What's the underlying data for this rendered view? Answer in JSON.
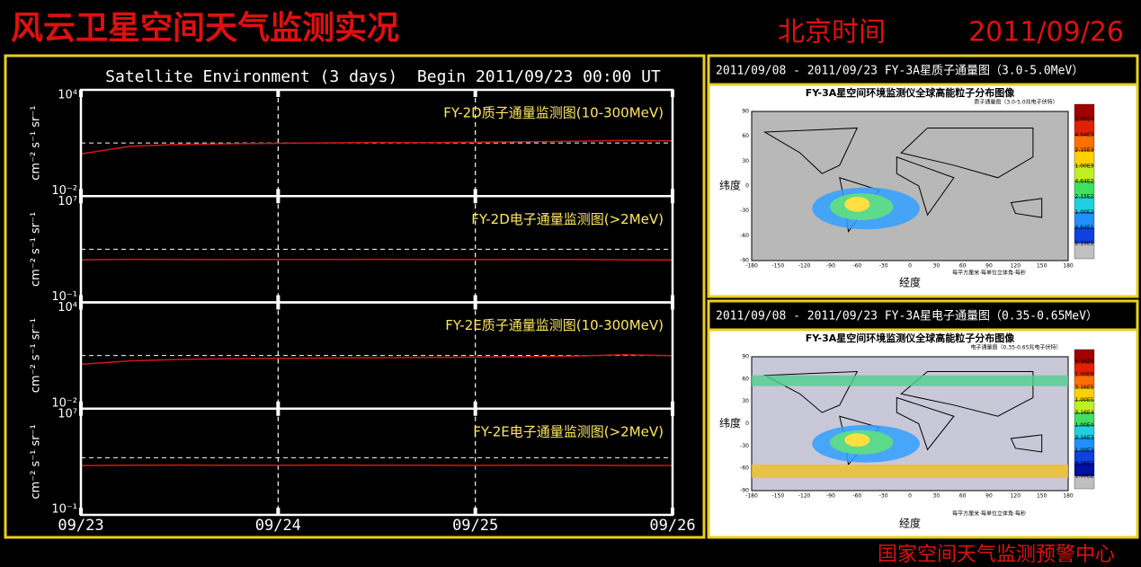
{
  "header": {
    "title": "风云卫星空间天气监测实况",
    "time_label": "北京时间",
    "date": "2011/09/26"
  },
  "left_panel": {
    "title": "Satellite Environment (3 days)  Begin 2011/09/23 00:00 UT"
  },
  "chart_data": [
    {
      "type": "line",
      "title": "FY-2D质子通量监测图(10-300MeV)",
      "y_label": "cm⁻² s⁻¹ sr⁻¹",
      "color": "#d01818",
      "log_y": true,
      "threshold": 10,
      "xlim": [
        0,
        3
      ],
      "xticks": [
        0,
        1,
        2,
        3
      ],
      "ylim": [
        0.01,
        10000
      ],
      "yticks": [
        {
          "value": 0.01,
          "label": "10⁻²"
        },
        {
          "value": 10000,
          "label": "10⁴"
        }
      ],
      "x": [
        0,
        0.25,
        0.5,
        0.75,
        1,
        1.25,
        1.5,
        1.75,
        2,
        2.25,
        2.5,
        2.75,
        3
      ],
      "values": [
        2.4,
        6.5,
        8.2,
        9.0,
        9.6,
        10.2,
        10.8,
        10.5,
        11.2,
        11.8,
        12.5,
        14.0,
        13.2
      ]
    },
    {
      "type": "line",
      "title": "FY-2D电子通量监测图(>2MeV)",
      "y_label": "cm⁻² s⁻¹ sr⁻¹",
      "color": "#d01818",
      "log_y": true,
      "threshold": 1000,
      "xlim": [
        0,
        3
      ],
      "xticks": [
        0,
        1,
        2,
        3
      ],
      "ylim": [
        0.1,
        10000000
      ],
      "yticks": [
        {
          "value": 0.1,
          "label": "10⁻¹"
        },
        {
          "value": 10000000,
          "label": "10⁷"
        }
      ],
      "x": [
        0,
        0.25,
        0.5,
        0.75,
        1,
        1.25,
        1.5,
        1.75,
        2,
        2.25,
        2.5,
        2.75,
        3
      ],
      "values": [
        160,
        175,
        170,
        165,
        172,
        168,
        175,
        170,
        165,
        172,
        168,
        162,
        158
      ]
    },
    {
      "type": "line",
      "title": "FY-2E质子通量监测图(10-300MeV)",
      "y_label": "cm⁻² s⁻¹ sr⁻¹",
      "color": "#d01818",
      "log_y": true,
      "threshold": 10,
      "xlim": [
        0,
        3
      ],
      "xticks": [
        0,
        1,
        2,
        3
      ],
      "ylim": [
        0.01,
        10000
      ],
      "yticks": [
        {
          "value": 0.01,
          "label": "10⁻²"
        },
        {
          "value": 10000,
          "label": "10⁴"
        }
      ],
      "x": [
        0,
        0.25,
        0.5,
        0.75,
        1,
        1.25,
        1.5,
        1.75,
        2,
        2.25,
        2.5,
        2.75,
        3
      ],
      "values": [
        3.2,
        5.0,
        6.0,
        6.5,
        7.0,
        7.2,
        7.5,
        7.8,
        8.0,
        8.5,
        9.2,
        11.0,
        9.8
      ]
    },
    {
      "type": "line",
      "title": "FY-2E电子通量监测图(>2MeV)",
      "y_label": "cm⁻² s⁻¹ sr⁻¹",
      "color": "#d01818",
      "log_y": true,
      "threshold": 2000,
      "xlim": [
        0,
        3
      ],
      "xticks": [
        {
          "value": 0,
          "label": "09/23"
        },
        {
          "value": 1,
          "label": "09/24"
        },
        {
          "value": 2,
          "label": "09/25"
        },
        {
          "value": 3,
          "label": "09/26"
        }
      ],
      "ylim": [
        0.1,
        10000000
      ],
      "yticks": [
        {
          "value": 0.1,
          "label": "10⁻¹"
        },
        {
          "value": 10000000,
          "label": "10⁷"
        }
      ],
      "x": [
        0,
        0.25,
        0.5,
        0.75,
        1,
        1.25,
        1.5,
        1.75,
        2,
        2.25,
        2.5,
        2.75,
        3
      ],
      "values": [
        520,
        540,
        560,
        550,
        545,
        560,
        555,
        540,
        535,
        545,
        540,
        530,
        525
      ]
    }
  ],
  "maps": [
    {
      "header": "2011/09/08 - 2011/09/23 FY-3A星质子通量图（3.0-5.0MeV）",
      "title": "FY-3A星空间环境监测仪全球高能粒子分布图像",
      "subtitle": "质子通量图（3.0-5.0兆电子伏特）",
      "lat_label": "纬度",
      "lon_label": "经度",
      "footnote": "每平方厘米·每单位立体角·每秒",
      "colorbar": [
        "1.00E4",
        "4.64E3",
        "2.15E3",
        "1.00E3",
        "4.64E2",
        "2.15E2",
        "1.00E2",
        "4.64E1",
        "2.15E1"
      ],
      "lon_ticks": [
        "-180",
        "-150",
        "-120",
        "-90",
        "-60",
        "-30",
        "0",
        "30",
        "60",
        "90",
        "120",
        "150",
        "180"
      ],
      "lat_ticks": [
        "90",
        "60",
        "30",
        "0",
        "-30",
        "-60",
        "-90"
      ]
    },
    {
      "header": "2011/09/08 - 2011/09/23 FY-3A星电子通量图（0.35-0.65MeV）",
      "title": "FY-3A星空间环境监测仪全球高能粒子分布图像",
      "subtitle": "电子通量图（0.35-0.65兆电子伏特）",
      "lat_label": "纬度",
      "lon_label": "经度",
      "footnote": "每平方厘米·每单位立体角·每秒",
      "colorbar": [
        "3.16E6",
        "1.00E6",
        "3.16E5",
        "1.00E5",
        "3.16E4",
        "1.00E4",
        "3.16E3",
        "1.00E3",
        "3.16E2",
        "1.00E2"
      ],
      "lon_ticks": [
        "-180",
        "-150",
        "-120",
        "-90",
        "-60",
        "-30",
        "0",
        "30",
        "60",
        "90",
        "120",
        "150",
        "180"
      ],
      "lat_ticks": [
        "90",
        "60",
        "30",
        "0",
        "-30",
        "-60",
        "-90"
      ]
    }
  ],
  "footer": "国家空间天气监测预警中心"
}
